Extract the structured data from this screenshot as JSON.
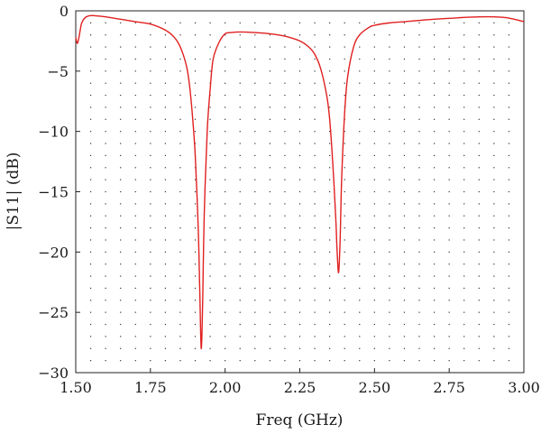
{
  "chart_data": {
    "type": "line",
    "xlabel": "Freq (GHz)",
    "ylabel": "|S11| (dB)",
    "xlim": [
      1.5,
      3.0
    ],
    "ylim": [
      -30,
      0
    ],
    "x_ticks": [
      1.5,
      1.75,
      2.0,
      2.25,
      2.5,
      2.75,
      3.0
    ],
    "x_tick_labels": [
      "1.50",
      "1.75",
      "2.00",
      "2.25",
      "2.50",
      "2.75",
      "3.00"
    ],
    "y_ticks": [
      0,
      -5,
      -10,
      -15,
      -20,
      -25,
      -30
    ],
    "y_tick_labels": [
      "0",
      "−5",
      "−10",
      "−15",
      "−20",
      "−25",
      "−30"
    ],
    "grid": "dotted",
    "line_color": "#e02020",
    "series": [
      {
        "x": [
          1.5,
          1.505,
          1.51,
          1.515,
          1.52,
          1.53,
          1.54,
          1.55,
          1.56,
          1.6,
          1.65,
          1.7,
          1.75,
          1.8,
          1.83,
          1.85,
          1.87,
          1.88,
          1.89,
          1.9,
          1.91,
          1.915,
          1.92,
          1.925,
          1.93,
          1.94,
          1.95,
          1.96,
          1.98,
          2.0,
          2.02,
          2.05,
          2.1,
          2.15,
          2.2,
          2.25,
          2.28,
          2.3,
          2.32,
          2.34,
          2.35,
          2.36,
          2.37,
          2.375,
          2.38,
          2.385,
          2.39,
          2.4,
          2.41,
          2.43,
          2.45,
          2.48,
          2.5,
          2.55,
          2.6,
          2.7,
          2.8,
          2.85,
          2.9,
          2.95,
          3.0
        ],
        "y": [
          -2.2,
          -2.7,
          -2.3,
          -1.6,
          -1.0,
          -0.6,
          -0.45,
          -0.4,
          -0.4,
          -0.5,
          -0.7,
          -0.9,
          -1.1,
          -1.6,
          -2.2,
          -3.0,
          -4.5,
          -6.0,
          -8.5,
          -12.0,
          -18.0,
          -23.0,
          -28.0,
          -24.0,
          -17.0,
          -10.0,
          -6.5,
          -4.0,
          -2.6,
          -1.9,
          -1.8,
          -1.75,
          -1.8,
          -1.9,
          -2.1,
          -2.5,
          -3.0,
          -3.6,
          -4.8,
          -7.0,
          -9.0,
          -12.5,
          -17.0,
          -20.0,
          -21.7,
          -19.0,
          -14.0,
          -8.5,
          -5.5,
          -3.0,
          -2.0,
          -1.4,
          -1.2,
          -1.0,
          -0.9,
          -0.7,
          -0.55,
          -0.5,
          -0.5,
          -0.6,
          -0.9
        ]
      }
    ]
  }
}
